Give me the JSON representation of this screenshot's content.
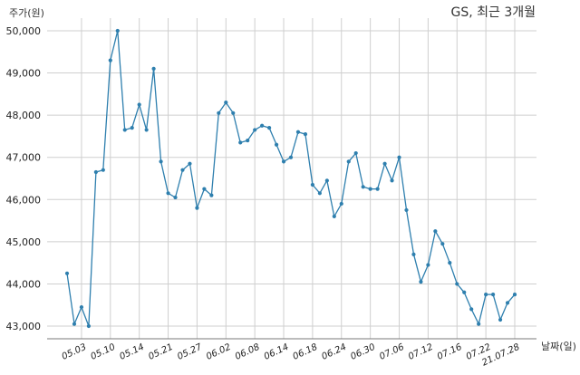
{
  "chart_data": {
    "type": "line",
    "title": "GS, 최근 3개월",
    "ylabel": "주가(원)",
    "xlabel": "날짜(일)",
    "ylim": [
      42700,
      50300
    ],
    "yticks": [
      43000,
      44000,
      45000,
      46000,
      47000,
      48000,
      49000,
      50000
    ],
    "ytick_labels": [
      "43,000",
      "44,000",
      "45,000",
      "46,000",
      "47,000",
      "48,000",
      "49,000",
      "50,000"
    ],
    "xtick_labels": [
      "05.03",
      "05.10",
      "05.14",
      "05.21",
      "05.27",
      "06.02",
      "06.08",
      "06.14",
      "06.18",
      "06.24",
      "06.30",
      "07.06",
      "07.12",
      "07.16",
      "07.22",
      "21.07.28"
    ],
    "xtick_index": [
      2,
      6,
      10,
      14,
      18,
      22,
      26,
      30,
      34,
      38,
      42,
      46,
      50,
      54,
      58,
      62
    ],
    "grid": true,
    "series": [
      {
        "color": "#2e7fae",
        "values": [
          44250,
          43050,
          43450,
          43000,
          46650,
          46700,
          49300,
          50000,
          47650,
          47700,
          48250,
          47650,
          49100,
          46900,
          46150,
          46050,
          46700,
          46850,
          45800,
          46250,
          46100,
          48050,
          48300,
          48050,
          47350,
          47400,
          47650,
          47750,
          47700,
          47300,
          46900,
          47000,
          47600,
          47550,
          46350,
          46150,
          46450,
          45600,
          45900,
          46900,
          47100,
          46300,
          46250,
          46250,
          46850,
          46450,
          47000,
          45750,
          44700,
          44050,
          44450,
          45250,
          44950,
          44500,
          44000,
          43800,
          43400,
          43050,
          43750,
          43750,
          43150,
          43550,
          43750
        ]
      }
    ]
  }
}
